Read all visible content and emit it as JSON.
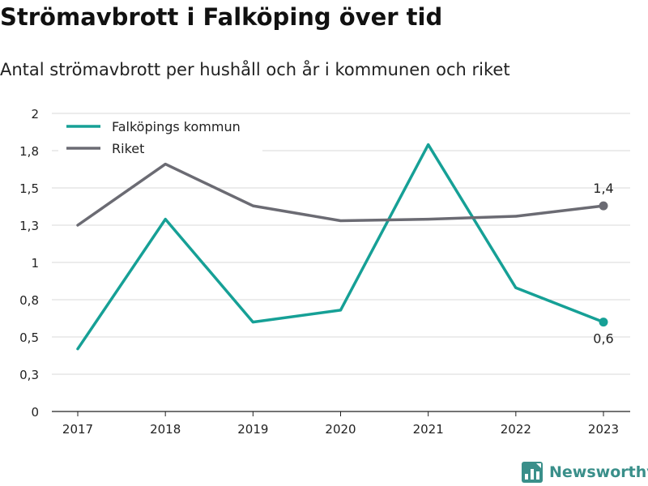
{
  "title": "Strömavbrott i Falköping över tid",
  "subtitle": "Antal strömavbrott per hushåll och år i kommunen och riket",
  "brand": {
    "name": "Newsworthy",
    "icon": "newsworthy-logo-icon"
  },
  "chart_data": {
    "type": "line",
    "title": "Strömavbrott i Falköping över tid",
    "subtitle": "Antal strömavbrott per hushåll och år i kommunen och riket",
    "xlabel": "",
    "ylabel": "",
    "categories": [
      "2017",
      "2018",
      "2019",
      "2020",
      "2021",
      "2022",
      "2023"
    ],
    "ylim": [
      0,
      2
    ],
    "yticks": [
      0,
      0.25,
      0.5,
      0.75,
      1,
      1.25,
      1.5,
      1.75,
      2
    ],
    "ytick_labels": [
      "0",
      "0,3",
      "0,5",
      "0,8",
      "1",
      "1,3",
      "1,5",
      "1,8",
      "2"
    ],
    "grid": true,
    "legend_position": "top-left",
    "series": [
      {
        "name": "Falköpings kommun",
        "color": "#16a096",
        "values": [
          0.42,
          1.29,
          0.6,
          0.68,
          1.79,
          0.83,
          0.6
        ],
        "end_label": "0,6",
        "end_label_position": "below"
      },
      {
        "name": "Riket",
        "color": "#6b6b73",
        "values": [
          1.25,
          1.66,
          1.38,
          1.28,
          1.29,
          1.31,
          1.38
        ],
        "end_label": "1,4",
        "end_label_position": "above"
      }
    ]
  }
}
